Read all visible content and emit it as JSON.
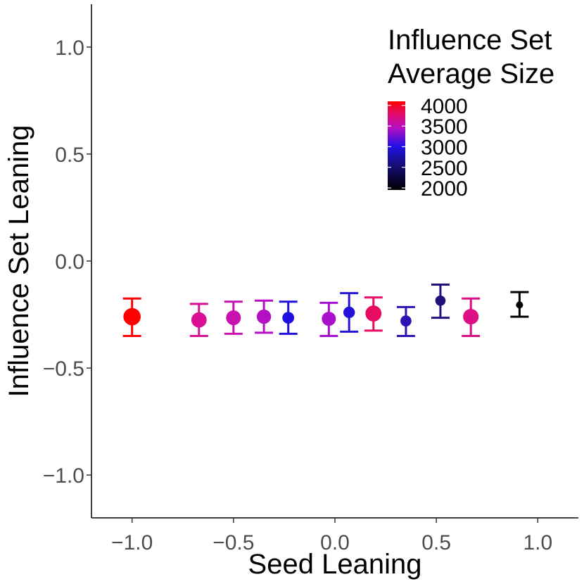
{
  "chart_data": {
    "type": "scatter",
    "title": "",
    "xlabel": "Seed Leaning",
    "ylabel": "Influence Set Leaning",
    "xlim": [
      -1.2,
      1.2
    ],
    "ylim": [
      -1.2,
      1.2
    ],
    "x_ticks": [
      -1.0,
      -0.5,
      0.0,
      0.5,
      1.0
    ],
    "x_tick_labels": [
      "−1.0",
      "−0.5",
      "0.0",
      "0.5",
      "1.0"
    ],
    "y_ticks": [
      -1.0,
      -0.5,
      0.0,
      0.5,
      1.0
    ],
    "y_tick_labels": [
      "−1.0",
      "−0.5",
      "0.0",
      "0.5",
      "1.0"
    ],
    "grid": false,
    "legend": {
      "title_line1": "Influence Set",
      "title_line2": "Average Size",
      "position": "top-right",
      "labels": [
        "4000",
        "3500",
        "3000",
        "2500",
        "2000"
      ],
      "breaks": [
        4000,
        3500,
        3000,
        2500,
        2000
      ],
      "range": [
        1950,
        4100
      ],
      "color_stops": [
        {
          "value": 1950,
          "color": "#000000"
        },
        {
          "value": 2650,
          "color": "#1a0f8c"
        },
        {
          "value": 3000,
          "color": "#1f10e6"
        },
        {
          "value": 3450,
          "color": "#b40fc4"
        },
        {
          "value": 3750,
          "color": "#dd0c78"
        },
        {
          "value": 4100,
          "color": "#ff0000"
        }
      ]
    },
    "series": [
      {
        "name": "Influence Set Leaning",
        "points": [
          {
            "x": -1.0,
            "y": -0.26,
            "ymin": -0.35,
            "ymax": -0.175,
            "size": 4050,
            "color": "#ff0000"
          },
          {
            "x": -0.67,
            "y": -0.275,
            "ymin": -0.35,
            "ymax": -0.2,
            "size": 3650,
            "color": "#d90f96"
          },
          {
            "x": -0.5,
            "y": -0.265,
            "ymin": -0.34,
            "ymax": -0.19,
            "size": 3550,
            "color": "#c712b0"
          },
          {
            "x": -0.35,
            "y": -0.26,
            "ymin": -0.335,
            "ymax": -0.185,
            "size": 3450,
            "color": "#b40fc4"
          },
          {
            "x": -0.23,
            "y": -0.265,
            "ymin": -0.34,
            "ymax": -0.19,
            "size": 2950,
            "color": "#2010e0"
          },
          {
            "x": -0.03,
            "y": -0.27,
            "ymin": -0.35,
            "ymax": -0.195,
            "size": 3400,
            "color": "#a811cc"
          },
          {
            "x": 0.07,
            "y": -0.24,
            "ymin": -0.33,
            "ymax": -0.15,
            "size": 2900,
            "color": "#2412d8"
          },
          {
            "x": 0.19,
            "y": -0.245,
            "ymin": -0.325,
            "ymax": -0.17,
            "size": 3800,
            "color": "#e60c62"
          },
          {
            "x": 0.35,
            "y": -0.28,
            "ymin": -0.35,
            "ymax": -0.215,
            "size": 2800,
            "color": "#2a14b4"
          },
          {
            "x": 0.52,
            "y": -0.185,
            "ymin": -0.265,
            "ymax": -0.11,
            "size": 2650,
            "color": "#22107a"
          },
          {
            "x": 0.67,
            "y": -0.26,
            "ymin": -0.35,
            "ymax": -0.175,
            "size": 3700,
            "color": "#dc0e84"
          },
          {
            "x": 0.91,
            "y": -0.205,
            "ymin": -0.26,
            "ymax": -0.145,
            "size": 2000,
            "color": "#000000"
          }
        ]
      }
    ]
  }
}
